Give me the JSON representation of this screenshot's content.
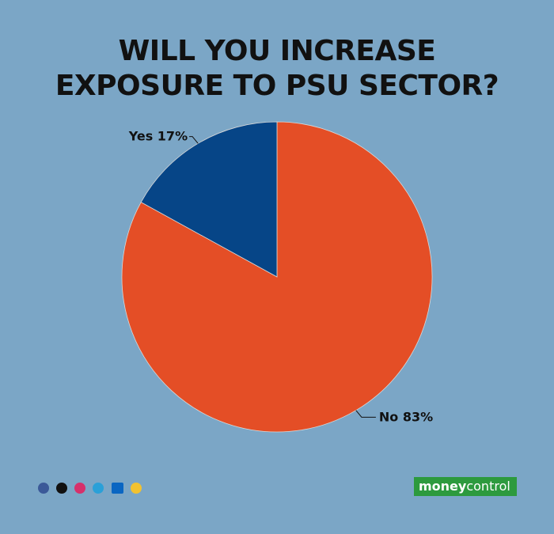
{
  "chart_data": {
    "type": "pie",
    "title": [
      "WILL YOU INCREASE",
      "EXPOSURE TO PSU SECTOR?"
    ],
    "categories": [
      "No",
      "Yes"
    ],
    "values": [
      83,
      17
    ],
    "value_labels": [
      "83%",
      "17%"
    ],
    "colors": [
      "#e44e26",
      "#064587"
    ]
  },
  "footer": {
    "brand": [
      "money",
      "control"
    ]
  }
}
